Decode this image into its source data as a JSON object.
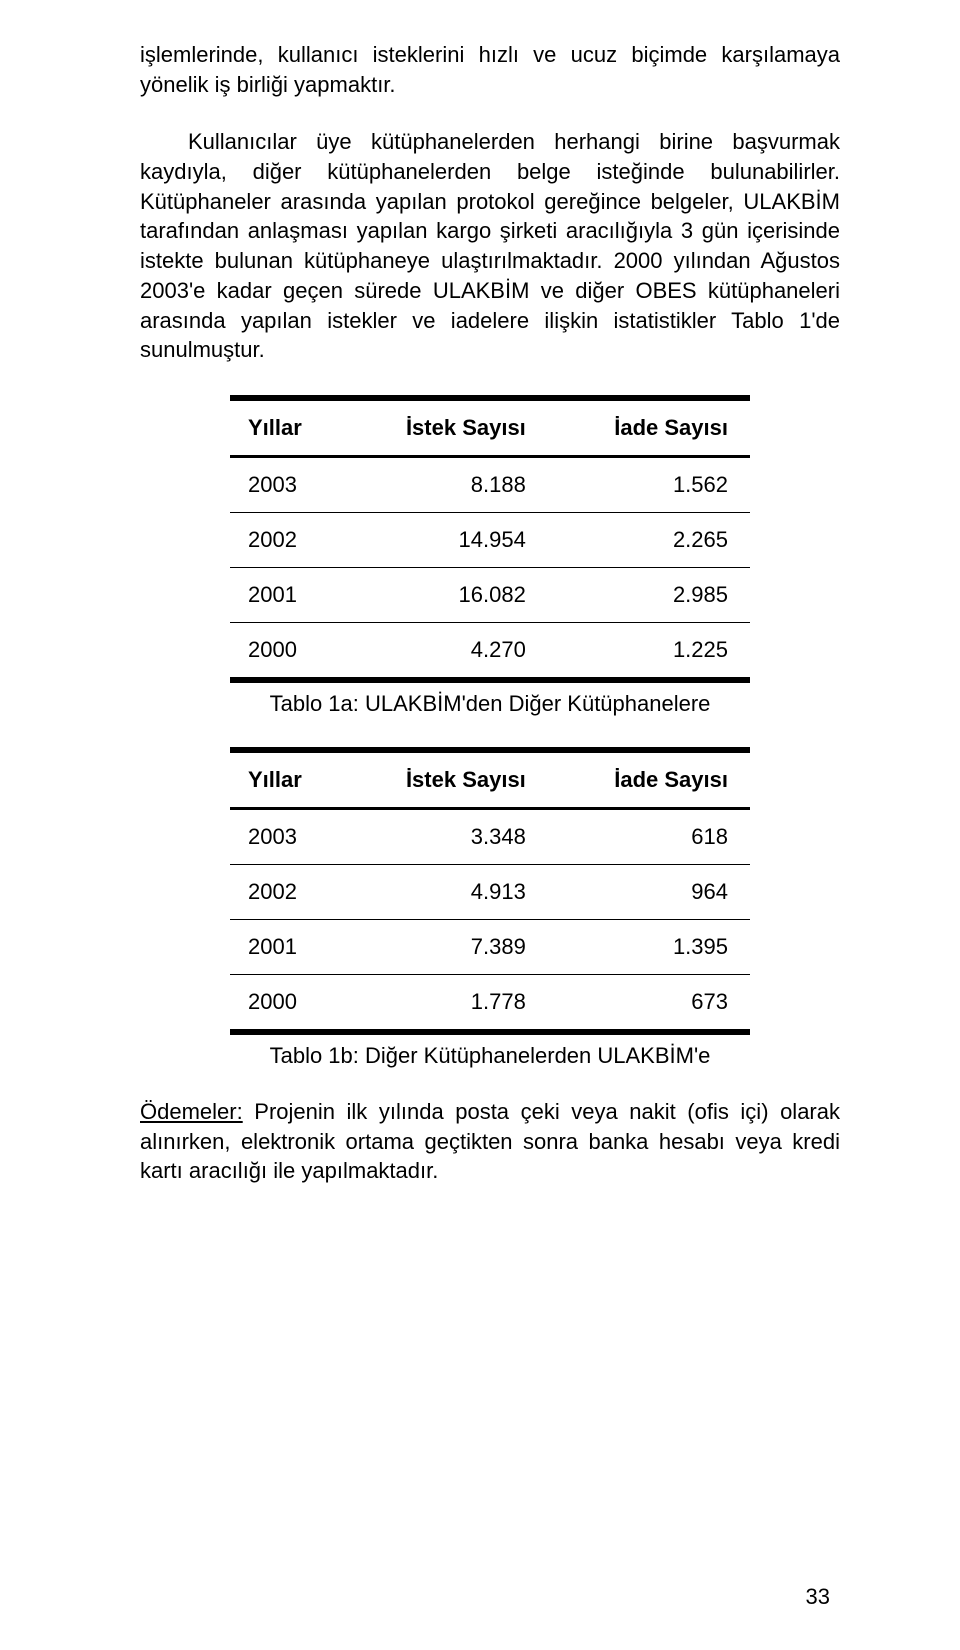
{
  "paragraphs": {
    "p1": "işlemlerinde, kullanıcı isteklerini hızlı ve ucuz biçimde karşılamaya yönelik iş birliği yapmaktır.",
    "p2": "Kullanıcılar üye kütüphanelerden herhangi birine başvurmak kaydıyla, diğer kütüphanelerden belge isteğinde bulunabilirler. Kütüphaneler arasında yapılan protokol gereğince belgeler, ULAKBİM tarafından anlaşması yapılan kargo şirketi aracılığıyla 3 gün içerisinde istekte bulunan kütüphaneye ulaştırılmaktadır. 2000 yılından Ağustos 2003'e kadar geçen sürede ULAKBİM ve diğer OBES kütüphaneleri arasında yapılan istekler ve iadelere ilişkin istatistikler Tablo 1'de sunulmuştur.",
    "p3_lead": "Ödemeler:",
    "p3_rest": " Projenin ilk yılında posta çeki veya nakit (ofis içi) olarak alınırken, elektronik ortama geçtikten sonra banka hesabı veya kredi kartı aracılığı ile yapılmaktadır."
  },
  "table_a": {
    "caption": "Tablo 1a: ULAKBİM'den Diğer Kütüphanelere",
    "headers": {
      "col1": "Yıllar",
      "col2": "İstek Sayısı",
      "col3": "İade Sayısı"
    },
    "rows": [
      {
        "y": "2003",
        "istek": "8.188",
        "iade": "1.562"
      },
      {
        "y": "2002",
        "istek": "14.954",
        "iade": "2.265"
      },
      {
        "y": "2001",
        "istek": "16.082",
        "iade": "2.985"
      },
      {
        "y": "2000",
        "istek": "4.270",
        "iade": "1.225"
      }
    ]
  },
  "table_b": {
    "caption": "Tablo 1b: Diğer Kütüphanelerden ULAKBİM'e",
    "headers": {
      "col1": "Yıllar",
      "col2": "İstek Sayısı",
      "col3": "İade Sayısı"
    },
    "rows": [
      {
        "y": "2003",
        "istek": "3.348",
        "iade": "618"
      },
      {
        "y": "2002",
        "istek": "4.913",
        "iade": "964"
      },
      {
        "y": "2001",
        "istek": "7.389",
        "iade": "1.395"
      },
      {
        "y": "2000",
        "istek": "1.778",
        "iade": "673"
      }
    ]
  },
  "page_number": "33"
}
